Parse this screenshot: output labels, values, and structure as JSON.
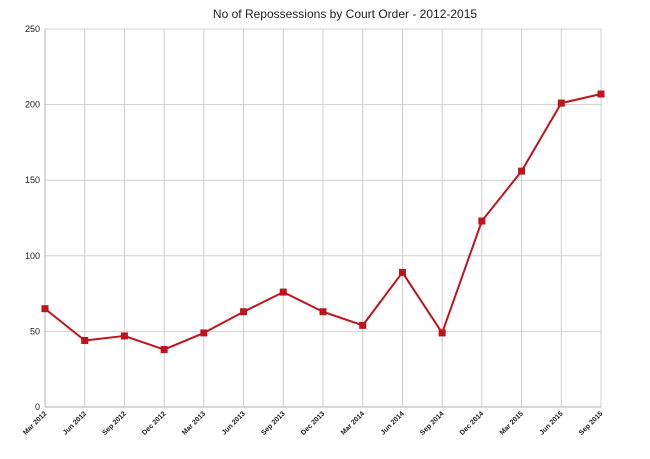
{
  "chart_data": {
    "type": "line",
    "title": "No of Repossessions by Court Order - 2012-2015",
    "xlabel": "",
    "ylabel": "",
    "ylim": [
      0,
      250
    ],
    "yticks": [
      0,
      50,
      100,
      150,
      200,
      250
    ],
    "grid": true,
    "categories": [
      "Mar 2012",
      "Jun 2012",
      "Sep 2012",
      "Dec 2012",
      "Mar 2013",
      "Jun 2013",
      "Sep 2013",
      "Dec 2013",
      "Mar 2014",
      "Jun 2014",
      "Sep 2014",
      "Dec 2014",
      "Mar 2015",
      "Jun 2015",
      "Sep 2015"
    ],
    "series": [
      {
        "values": [
          65,
          44,
          47,
          38,
          49,
          63,
          76,
          63,
          54,
          89,
          49,
          123,
          156,
          201,
          207
        ],
        "color": "#c0131c",
        "marker": "square"
      }
    ]
  }
}
